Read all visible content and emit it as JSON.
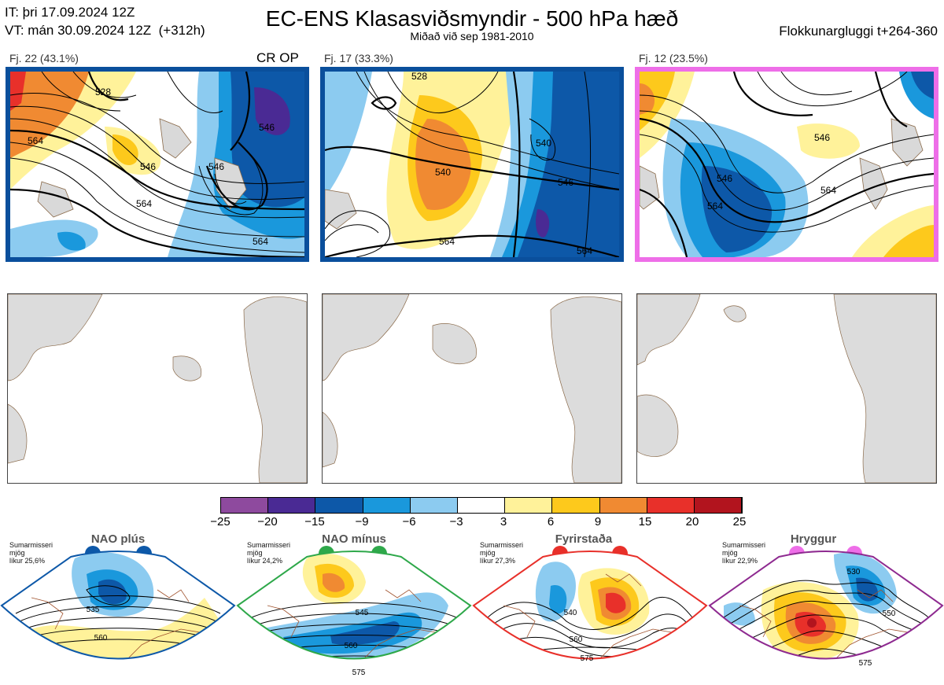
{
  "header": {
    "init_time": "IT: þri 17.09.2024 12Z",
    "valid_time": "VT: mán 30.09.2024 12Z  (+312h)",
    "title": "EC-ENS Klasasviðsmyndir - 500 hPa hæð",
    "subtitle": "Miðað við sep 1981-2010",
    "window": "Flokkunargluggi t+264-360"
  },
  "clusters": [
    {
      "label": "Fj. 22 (43.1%)",
      "tag": "CR OP",
      "border_color": "#0a4f9c",
      "contours": [
        "564",
        "528",
        "546",
        "546",
        "546",
        "564",
        "564"
      ]
    },
    {
      "label": "Fj. 17 (33.3%)",
      "tag": "",
      "border_color": "#0a4f9c",
      "contours": [
        "540",
        "546",
        "528",
        "540",
        "564",
        "564"
      ]
    },
    {
      "label": "Fj. 12 (23.5%)",
      "tag": "",
      "border_color": "#ee6ee8",
      "contours": [
        "546",
        "546",
        "564",
        "564"
      ]
    }
  ],
  "colorbar": {
    "ticks": [
      "−25",
      "−20",
      "−15",
      "−9",
      "−6",
      "−3",
      "3",
      "6",
      "9",
      "15",
      "20",
      "25"
    ],
    "colors": [
      "#8e4a9e",
      "#4a2a94",
      "#0d58a8",
      "#1a98dc",
      "#8ccbf0",
      "#ffffff",
      "#fff29a",
      "#fdc91c",
      "#f08a32",
      "#e8302a",
      "#b2141e"
    ]
  },
  "regimes": [
    {
      "name": "NAO plús",
      "note": "Sumarmisseri\nmjög\nlíkur 25,6%",
      "color": "#0d58a8",
      "contours": [
        "535",
        "560"
      ]
    },
    {
      "name": "NAO mínus",
      "note": "Sumarmisseri\nmjög\nlíkur 24,2%",
      "color": "#2ea84a",
      "contours": [
        "545",
        "560",
        "575"
      ]
    },
    {
      "name": "Fyrirstaða",
      "note": "Sumarmisseri\nmjög\nlíkur 27,3%",
      "color": "#e8302a",
      "contours": [
        "540",
        "560",
        "575"
      ]
    },
    {
      "name": "Hryggur",
      "note": "Sumarmisseri\nmjög\nlíkur 22,9%",
      "color": "#ee6ee8",
      "contours": [
        "530",
        "550",
        "575"
      ]
    }
  ]
}
